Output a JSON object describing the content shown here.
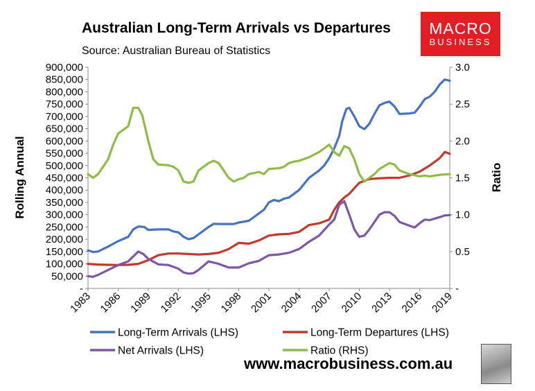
{
  "chart_data": {
    "type": "line",
    "title": "Australian Long-Term Arrivals vs Departures",
    "subtitle": "Source: Australian Bureau of Statistics",
    "ylabel_left": "Rolling Annual",
    "ylabel_right": "Ratio",
    "ylim_left": [
      0,
      900000
    ],
    "ylim_right": [
      0,
      3.0
    ],
    "yticks_left": [
      "-",
      "50,000",
      "100,000",
      "150,000",
      "200,000",
      "250,000",
      "300,000",
      "350,000",
      "400,000",
      "450,000",
      "500,000",
      "550,000",
      "600,000",
      "650,000",
      "700,000",
      "750,000",
      "800,000",
      "850,000",
      "900,000"
    ],
    "yticks_right": [
      "-",
      "0.5",
      "1.0",
      "1.5",
      "2.0",
      "2.5",
      "3.0"
    ],
    "xlim": [
      1983,
      2019
    ],
    "xticks": [
      "1983",
      "1986",
      "1989",
      "1992",
      "1995",
      "1998",
      "2001",
      "2004",
      "2007",
      "2010",
      "2013",
      "2016",
      "2019"
    ],
    "series": [
      {
        "name": "Long-Term Arrivals (LHS)",
        "axis": "left",
        "color": "#4472c4",
        "x": [
          1983,
          1983.5,
          1984,
          1985,
          1986,
          1987,
          1987.5,
          1988,
          1988.6,
          1989,
          1990,
          1991,
          1991.5,
          1992,
          1992.5,
          1993,
          1993.5,
          1994,
          1995,
          1995.5,
          1996,
          1997,
          1997.5,
          1998,
          1999,
          2000,
          2000.5,
          2001,
          2001.5,
          2002,
          2002.5,
          2003,
          2004,
          2005,
          2006,
          2006.5,
          2007,
          2007.5,
          2008,
          2008.3,
          2008.7,
          2009,
          2009.5,
          2010,
          2010.5,
          2011,
          2011.5,
          2012,
          2012.5,
          2013,
          2013.5,
          2014,
          2015,
          2015.5,
          2016,
          2016.5,
          2017,
          2017.5,
          2018,
          2018.5,
          2019
        ],
        "values": [
          155000,
          148000,
          150000,
          170000,
          192000,
          210000,
          240000,
          252000,
          250000,
          238000,
          240000,
          240000,
          232000,
          228000,
          210000,
          200000,
          205000,
          220000,
          250000,
          263000,
          262000,
          262000,
          262000,
          268000,
          275000,
          305000,
          320000,
          350000,
          360000,
          355000,
          365000,
          370000,
          400000,
          450000,
          480000,
          500000,
          530000,
          570000,
          620000,
          680000,
          730000,
          735000,
          700000,
          660000,
          648000,
          670000,
          710000,
          745000,
          755000,
          760000,
          740000,
          710000,
          712000,
          715000,
          740000,
          770000,
          780000,
          800000,
          830000,
          850000,
          845000
        ]
      },
      {
        "name": "Long-Term Departures (LHS)",
        "axis": "left",
        "color": "#c0392b",
        "x": [
          1983,
          1984,
          1985,
          1986,
          1987,
          1988,
          1989,
          1990,
          1991,
          1992,
          1993,
          1994,
          1995,
          1996,
          1997,
          1998,
          1999,
          2000,
          2001,
          2002,
          2003,
          2004,
          2005,
          2006,
          2007,
          2007.5,
          2008,
          2008.5,
          2009,
          2010,
          2011,
          2012,
          2013,
          2014,
          2015,
          2016,
          2017,
          2018,
          2018.5,
          2019
        ],
        "values": [
          100000,
          97000,
          96000,
          95000,
          96000,
          100000,
          115000,
          135000,
          142000,
          142000,
          140000,
          138000,
          140000,
          145000,
          160000,
          185000,
          182000,
          195000,
          215000,
          220000,
          222000,
          230000,
          258000,
          265000,
          280000,
          320000,
          350000,
          370000,
          385000,
          430000,
          445000,
          448000,
          450000,
          450000,
          460000,
          475000,
          500000,
          530000,
          555000,
          548000
        ]
      },
      {
        "name": "Net Arrivals (LHS)",
        "axis": "left",
        "color": "#7b57a5",
        "x": [
          1983,
          1983.5,
          1984,
          1985,
          1986,
          1987,
          1987.5,
          1988,
          1988.5,
          1989,
          1990,
          1991,
          1992,
          1992.5,
          1993,
          1993.5,
          1994,
          1995,
          1996,
          1997,
          1998,
          1999,
          2000,
          2001,
          2002,
          2003,
          2004,
          2005,
          2006,
          2007,
          2007.5,
          2008,
          2008.5,
          2009,
          2009.5,
          2010,
          2010.5,
          2011,
          2011.5,
          2012,
          2012.5,
          2013,
          2013.5,
          2014,
          2015,
          2015.5,
          2016,
          2016.5,
          2017,
          2018,
          2018.5,
          2019
        ],
        "values": [
          50000,
          47000,
          55000,
          75000,
          95000,
          110000,
          130000,
          150000,
          140000,
          120000,
          98000,
          95000,
          80000,
          65000,
          60000,
          62000,
          75000,
          110000,
          100000,
          85000,
          85000,
          102000,
          112000,
          135000,
          138000,
          145000,
          160000,
          190000,
          215000,
          260000,
          280000,
          340000,
          355000,
          300000,
          240000,
          210000,
          215000,
          240000,
          270000,
          300000,
          310000,
          310000,
          295000,
          270000,
          255000,
          248000,
          265000,
          280000,
          278000,
          290000,
          297000,
          298000
        ]
      },
      {
        "name": "Ratio (RHS)",
        "axis": "right",
        "color": "#8fbc45",
        "x": [
          1983,
          1983.5,
          1984,
          1985,
          1985.5,
          1986,
          1986.5,
          1987,
          1987.5,
          1988,
          1988.4,
          1989,
          1989.5,
          1990,
          1991,
          1991.5,
          1992,
          1992.5,
          1993,
          1993.5,
          1994,
          1995,
          1995.5,
          1996,
          1997,
          1997.5,
          1998,
          1998.5,
          1999,
          2000,
          2000.5,
          2001,
          2002,
          2002.5,
          2003,
          2003.5,
          2004,
          2005,
          2006,
          2006.5,
          2007,
          2007.5,
          2008,
          2008.5,
          2009,
          2009.5,
          2010,
          2010.5,
          2011,
          2011.5,
          2012,
          2013,
          2013.5,
          2014,
          2015,
          2016,
          2016.5,
          2017,
          2018,
          2019
        ],
        "values": [
          1.55,
          1.5,
          1.55,
          1.75,
          1.95,
          2.1,
          2.15,
          2.2,
          2.45,
          2.45,
          2.35,
          2.0,
          1.75,
          1.68,
          1.67,
          1.65,
          1.6,
          1.45,
          1.43,
          1.45,
          1.6,
          1.7,
          1.73,
          1.7,
          1.5,
          1.45,
          1.48,
          1.5,
          1.55,
          1.58,
          1.55,
          1.62,
          1.63,
          1.65,
          1.7,
          1.72,
          1.73,
          1.78,
          1.85,
          1.9,
          1.95,
          1.85,
          1.8,
          1.93,
          1.9,
          1.75,
          1.55,
          1.45,
          1.5,
          1.55,
          1.62,
          1.7,
          1.68,
          1.6,
          1.55,
          1.52,
          1.53,
          1.52,
          1.54,
          1.55
        ]
      }
    ],
    "logo": {
      "main": "MACRO",
      "sub": "BUSINESS"
    },
    "website": "www.macrobusiness.com.au"
  }
}
